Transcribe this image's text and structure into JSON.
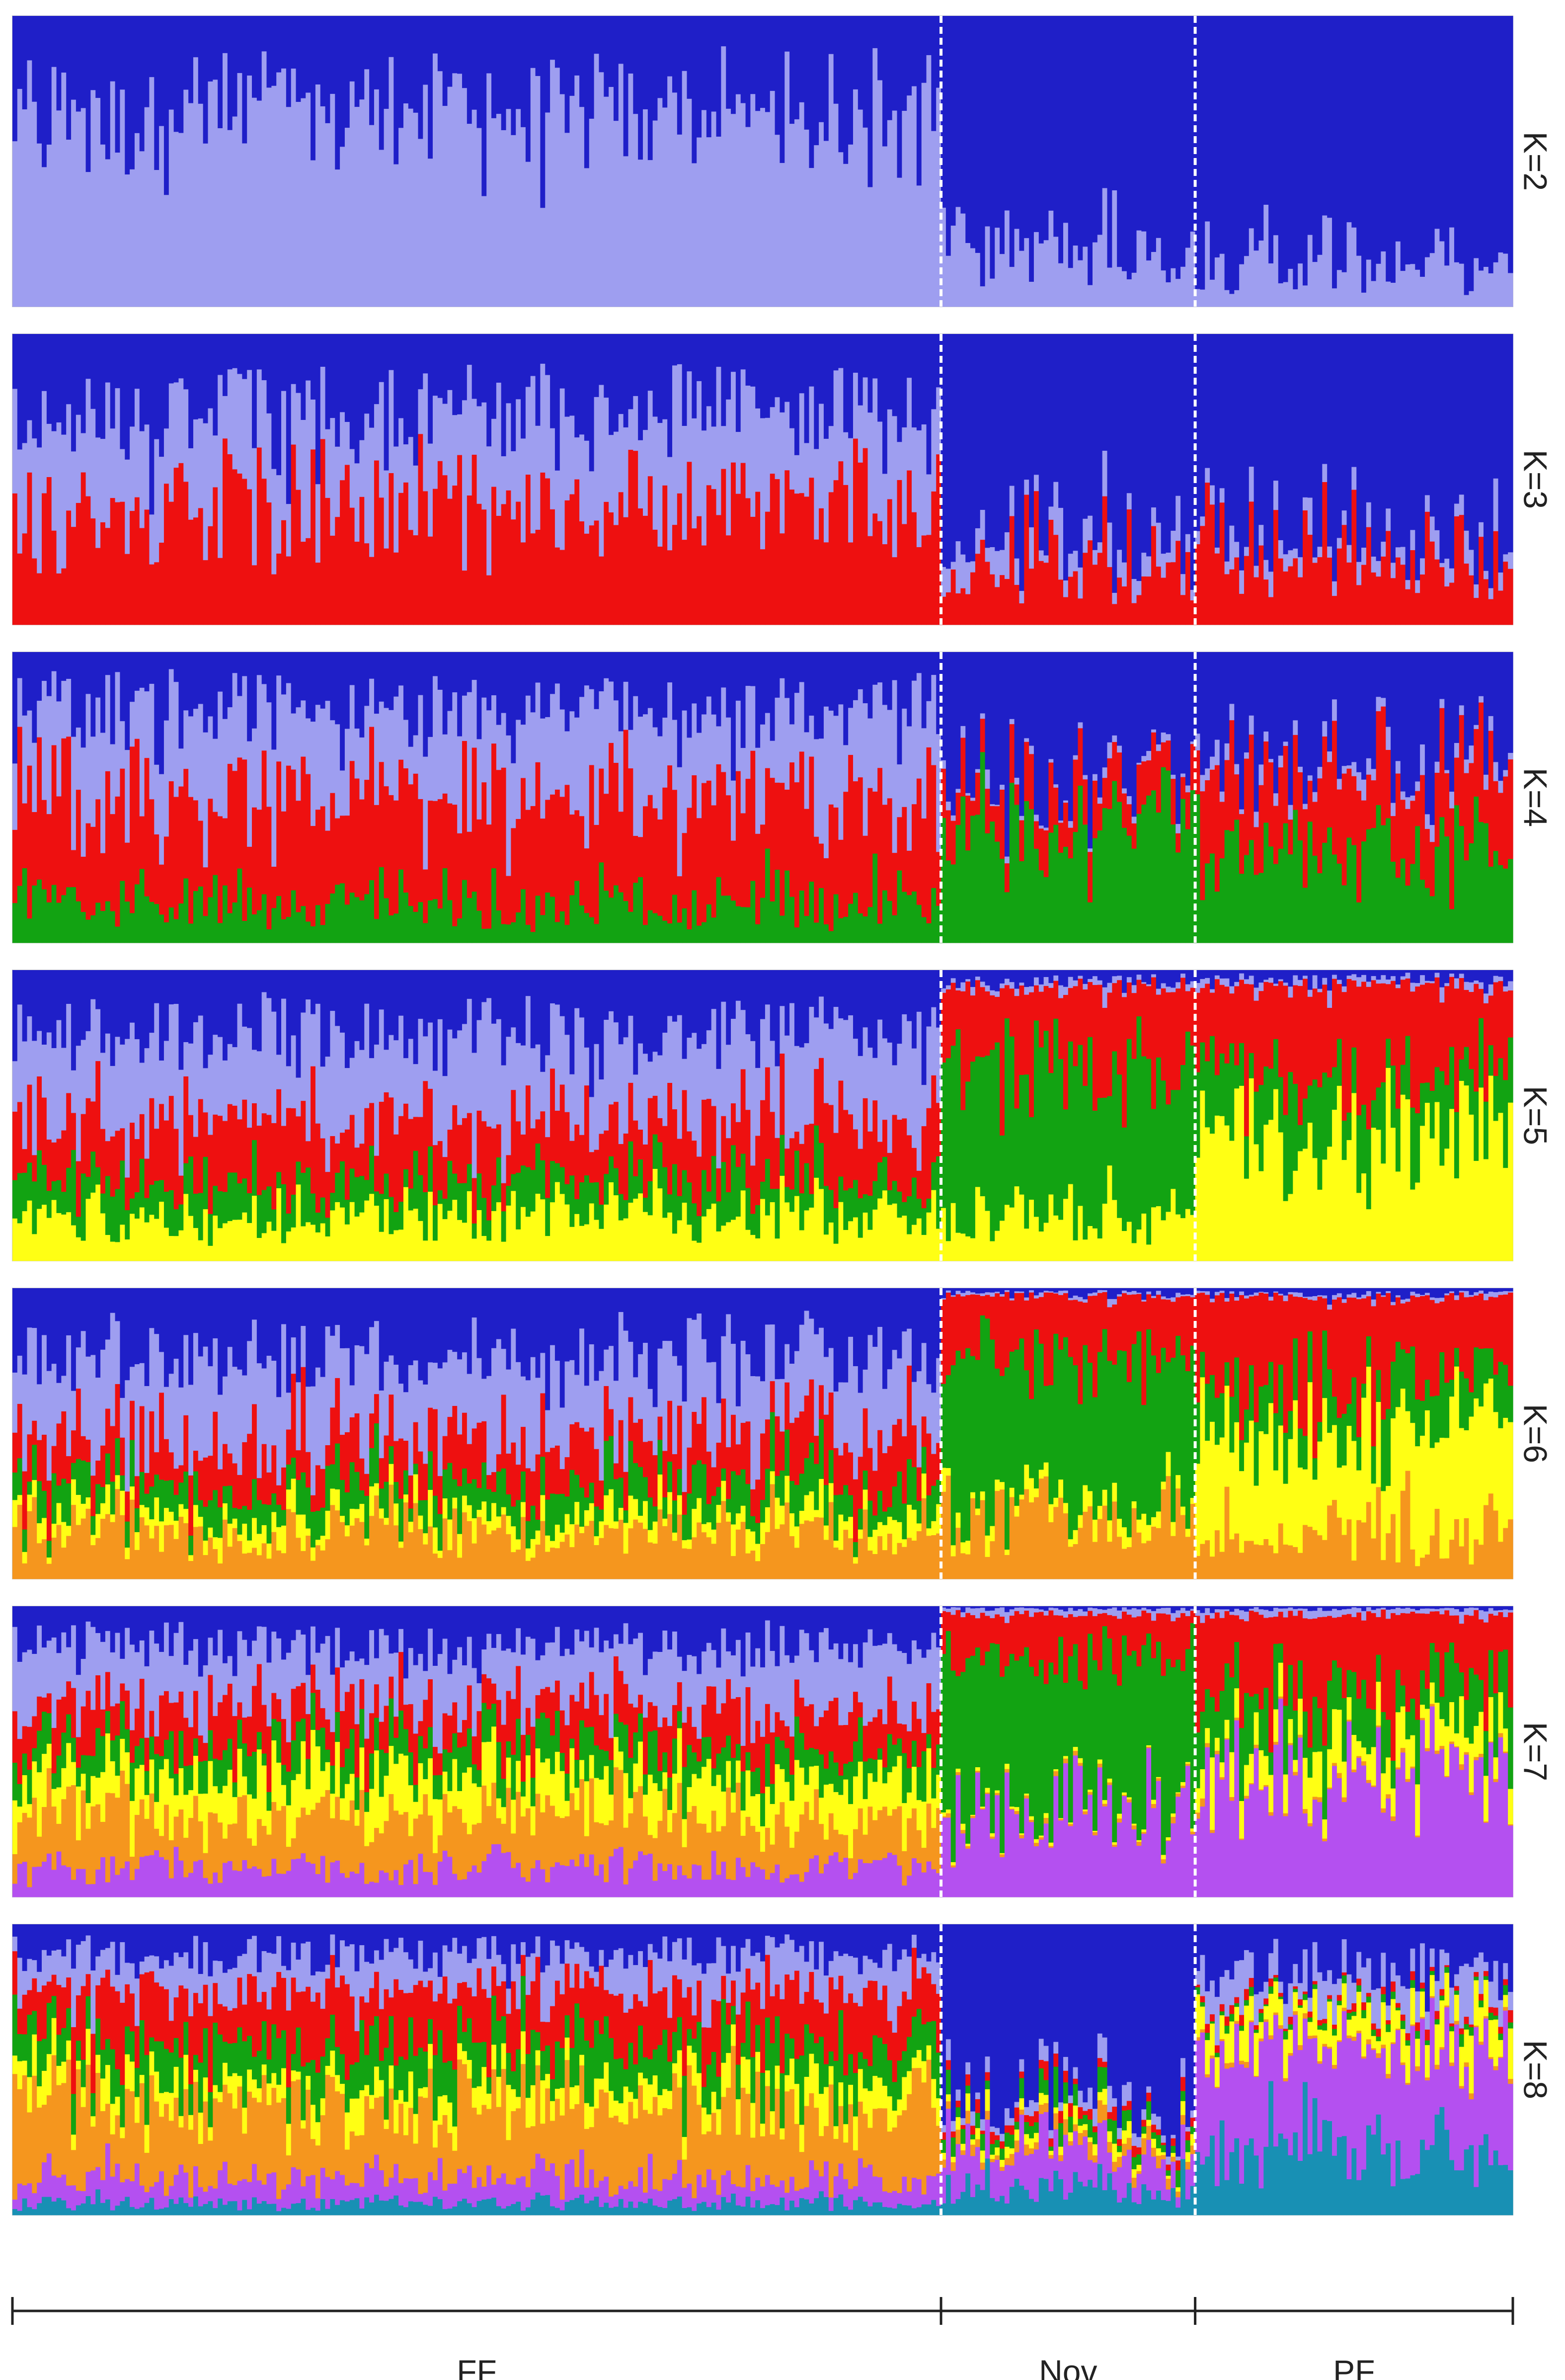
{
  "chart_data": {
    "type": "stacked-bar",
    "title": "",
    "xlabel": "",
    "ylabel": "",
    "ylim": [
      0,
      1
    ],
    "groups": [
      {
        "name": "FF",
        "share": 0.615
      },
      {
        "name": "Nov",
        "share": 0.17
      },
      {
        "name": "PF",
        "share": 0.215
      }
    ],
    "cluster_colors": {
      "blue": "#1f1fc8",
      "lavender": "#9e9ef0",
      "red": "#ee1010",
      "green": "#12a312",
      "yellow": "#ffff14",
      "orange": "#f5961e",
      "purple": "#b450f0",
      "teal": "#1890b4"
    },
    "panels": [
      {
        "label": "K=2",
        "mean_proportions": {
          "FF": {
            "blue": 0.32,
            "lavender": 0.68
          },
          "Nov": {
            "blue": 0.8,
            "lavender": 0.2
          },
          "PF": {
            "blue": 0.85,
            "lavender": 0.15
          }
        }
      },
      {
        "label": "K=3",
        "mean_proportions": {
          "FF": {
            "blue": 0.28,
            "lavender": 0.32,
            "red": 0.4
          },
          "Nov": {
            "blue": 0.72,
            "lavender": 0.08,
            "red": 0.2
          },
          "PF": {
            "blue": 0.72,
            "lavender": 0.06,
            "red": 0.22
          }
        }
      },
      {
        "label": "K=4",
        "mean_proportions": {
          "FF": {
            "blue": 0.2,
            "lavender": 0.3,
            "red": 0.36,
            "green": 0.14
          },
          "Nov": {
            "blue": 0.48,
            "lavender": 0.02,
            "red": 0.14,
            "green": 0.36
          },
          "PF": {
            "blue": 0.38,
            "lavender": 0.04,
            "red": 0.26,
            "green": 0.32
          }
        }
      },
      {
        "label": "K=5",
        "mean_proportions": {
          "FF": {
            "blue": 0.22,
            "lavender": 0.3,
            "red": 0.2,
            "green": 0.12,
            "yellow": 0.16
          },
          "Nov": {
            "blue": 0.04,
            "lavender": 0.02,
            "red": 0.3,
            "green": 0.48,
            "yellow": 0.16
          },
          "PF": {
            "blue": 0.03,
            "lavender": 0.02,
            "red": 0.3,
            "green": 0.2,
            "yellow": 0.45
          }
        }
      },
      {
        "label": "K=6",
        "mean_proportions": {
          "FF": {
            "blue": 0.24,
            "lavender": 0.28,
            "red": 0.16,
            "green": 0.1,
            "yellow": 0.06,
            "orange": 0.16
          },
          "Nov": {
            "blue": 0.02,
            "lavender": 0.01,
            "red": 0.22,
            "green": 0.5,
            "yellow": 0.05,
            "orange": 0.2
          },
          "PF": {
            "blue": 0.02,
            "lavender": 0.01,
            "red": 0.3,
            "green": 0.16,
            "yellow": 0.36,
            "orange": 0.15
          }
        }
      },
      {
        "label": "K=7",
        "mean_proportions": {
          "FF": {
            "blue": 0.14,
            "lavender": 0.2,
            "red": 0.14,
            "green": 0.1,
            "yellow": 0.14,
            "orange": 0.18,
            "purple": 0.1
          },
          "Nov": {
            "blue": 0.01,
            "lavender": 0.02,
            "red": 0.14,
            "green": 0.52,
            "yellow": 0.01,
            "orange": 0.01,
            "purple": 0.29
          },
          "PF": {
            "blue": 0.01,
            "lavender": 0.02,
            "red": 0.26,
            "green": 0.16,
            "yellow": 0.12,
            "orange": 0.01,
            "purple": 0.42
          }
        }
      },
      {
        "label": "K=8",
        "mean_proportions": {
          "FF": {
            "blue": 0.1,
            "lavender": 0.12,
            "red": 0.18,
            "green": 0.14,
            "yellow": 0.08,
            "orange": 0.26,
            "purple": 0.08,
            "teal": 0.04
          },
          "Nov": {
            "blue": 0.62,
            "lavender": 0.04,
            "red": 0.03,
            "green": 0.05,
            "yellow": 0.03,
            "orange": 0.03,
            "purple": 0.12,
            "teal": 0.08
          },
          "PF": {
            "blue": 0.16,
            "lavender": 0.1,
            "red": 0.02,
            "green": 0.02,
            "yellow": 0.1,
            "orange": 0.01,
            "purple": 0.35,
            "teal": 0.24
          }
        }
      }
    ]
  }
}
